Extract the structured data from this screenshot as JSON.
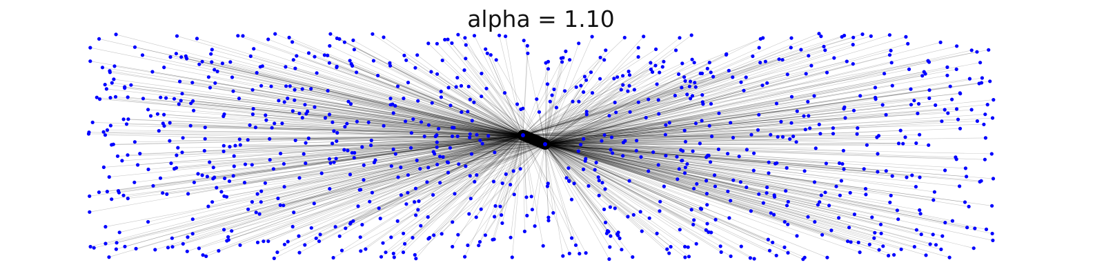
{
  "figure": {
    "title": "alpha = 1.10"
  },
  "colors": {
    "node": "#0000ff",
    "edge": "#000000",
    "background": "#ffffff"
  },
  "graph": {
    "hubs": [
      "hub-left",
      "hub-right"
    ],
    "leaf_count": 1000
  }
}
